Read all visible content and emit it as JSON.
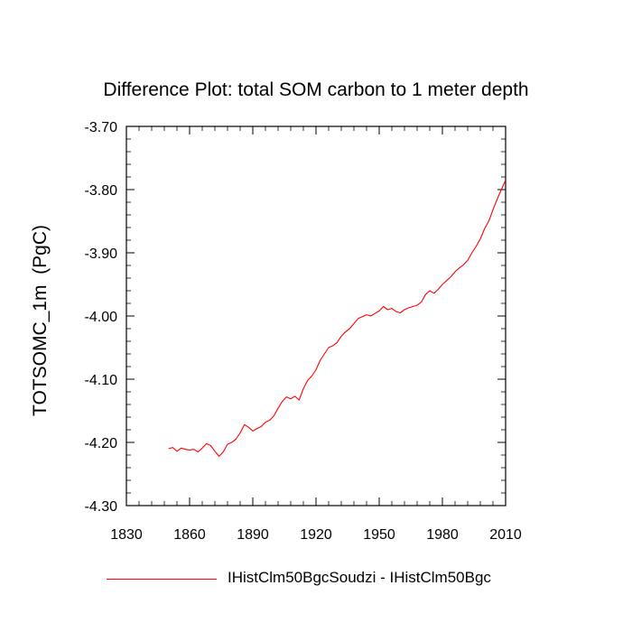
{
  "chart_data": {
    "type": "line",
    "title": "Difference Plot: total SOM carbon to 1 meter depth",
    "xlabel": "",
    "ylabel": "TOTSOMC_1m  (PgC)",
    "xlim": [
      1830,
      2010
    ],
    "ylim": [
      -4.3,
      -3.7
    ],
    "x_ticks": [
      "1830",
      "1860",
      "1890",
      "1920",
      "1950",
      "1980",
      "2010"
    ],
    "y_ticks": [
      "-3.70",
      "-3.80",
      "-3.90",
      "-4.00",
      "-4.10",
      "-4.20",
      "-4.30"
    ],
    "grid": false,
    "legend_position": "bottom",
    "series": [
      {
        "name": "IHistClm50BgcSoudzi - IHistClm50Bgc",
        "color": "#ff0000",
        "x": [
          1850,
          1852,
          1854,
          1856,
          1858,
          1860,
          1862,
          1864,
          1866,
          1868,
          1870,
          1872,
          1874,
          1876,
          1878,
          1880,
          1882,
          1884,
          1886,
          1888,
          1890,
          1892,
          1894,
          1896,
          1898,
          1900,
          1902,
          1904,
          1906,
          1908,
          1910,
          1912,
          1914,
          1916,
          1918,
          1920,
          1922,
          1924,
          1926,
          1928,
          1930,
          1932,
          1934,
          1936,
          1938,
          1940,
          1942,
          1944,
          1946,
          1948,
          1950,
          1952,
          1954,
          1956,
          1958,
          1960,
          1962,
          1964,
          1966,
          1968,
          1970,
          1972,
          1974,
          1976,
          1978,
          1980,
          1982,
          1984,
          1986,
          1988,
          1990,
          1992,
          1994,
          1996,
          1998,
          2000,
          2002,
          2004,
          2006,
          2008,
          2010
        ],
        "y": [
          -4.21,
          -4.208,
          -4.214,
          -4.209,
          -4.211,
          -4.212,
          -4.211,
          -4.215,
          -4.209,
          -4.202,
          -4.205,
          -4.214,
          -4.222,
          -4.215,
          -4.203,
          -4.2,
          -4.195,
          -4.185,
          -4.172,
          -4.176,
          -4.182,
          -4.178,
          -4.175,
          -4.168,
          -4.165,
          -4.158,
          -4.146,
          -4.135,
          -4.128,
          -4.131,
          -4.127,
          -4.133,
          -4.115,
          -4.102,
          -4.095,
          -4.085,
          -4.07,
          -4.06,
          -4.05,
          -4.047,
          -4.042,
          -4.032,
          -4.025,
          -4.02,
          -4.012,
          -4.004,
          -4.001,
          -3.998,
          -4.0,
          -3.996,
          -3.992,
          -3.985,
          -3.99,
          -3.988,
          -3.993,
          -3.995,
          -3.99,
          -3.987,
          -3.985,
          -3.983,
          -3.978,
          -3.966,
          -3.96,
          -3.964,
          -3.958,
          -3.95,
          -3.944,
          -3.938,
          -3.93,
          -3.924,
          -3.919,
          -3.912,
          -3.9,
          -3.89,
          -3.878,
          -3.862,
          -3.85,
          -3.832,
          -3.815,
          -3.8,
          -3.785
        ]
      }
    ]
  }
}
